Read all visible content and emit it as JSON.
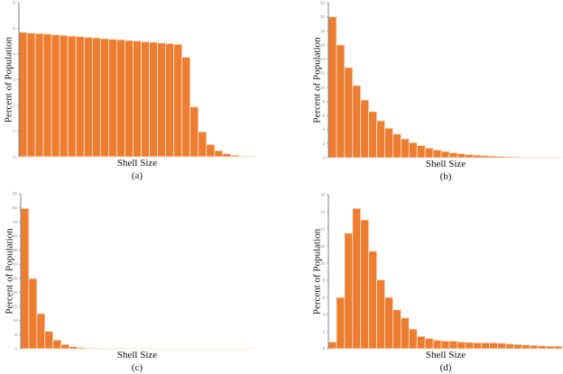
{
  "bar_color": "#ED7D31",
  "chart_data": [
    {
      "type": "bar",
      "panel": "(a)",
      "title": "",
      "xlabel": "Shell Size",
      "ylabel": "Percent of Population",
      "ylim": [
        0,
        6
      ],
      "yticks": [
        0,
        1,
        2,
        3,
        4,
        5,
        6
      ],
      "grid": false,
      "values": [
        4.85,
        4.82,
        4.8,
        4.78,
        4.75,
        4.73,
        4.7,
        4.68,
        4.65,
        4.63,
        4.6,
        4.58,
        4.56,
        4.53,
        4.51,
        4.48,
        4.46,
        4.43,
        4.41,
        4.38,
        3.88,
        1.94,
        0.97,
        0.48,
        0.24,
        0.12,
        0.06,
        0.03,
        0.015
      ]
    },
    {
      "type": "bar",
      "panel": "(b)",
      "title": "",
      "xlabel": "Shell Size",
      "ylabel": "Percent of Population",
      "ylim": [
        0,
        22
      ],
      "yticks": [
        0,
        2,
        4,
        6,
        8,
        10,
        12,
        14,
        16,
        18,
        20,
        22
      ],
      "grid": false,
      "values": [
        20,
        16,
        12.8,
        10.24,
        8.19,
        6.55,
        5.24,
        4.19,
        3.36,
        2.68,
        2.15,
        1.72,
        1.37,
        1.1,
        0.88,
        0.7,
        0.56,
        0.45,
        0.36,
        0.29,
        0.23,
        0.18,
        0.15,
        0.12,
        0.09,
        0.08,
        0.06,
        0.05,
        0.04
      ]
    },
    {
      "type": "bar",
      "panel": "(c)",
      "title": "",
      "xlabel": "Shell Size",
      "ylabel": "Percent of Population",
      "ylim": [
        0,
        55
      ],
      "yticks": [
        0,
        5,
        10,
        15,
        20,
        25,
        30,
        35,
        40,
        45,
        50,
        55
      ],
      "grid": false,
      "values": [
        49.8,
        24.9,
        12.45,
        6.2,
        3.1,
        1.55,
        0.78,
        0.39,
        0.2,
        0.1,
        0.05,
        0.03,
        0.02,
        0.01,
        0.01,
        0.01,
        0.01,
        0.01,
        0.01,
        0.01,
        0.01,
        0.01,
        0.01,
        0.01,
        0.01,
        0.01,
        0.01,
        0.01,
        0.01
      ]
    },
    {
      "type": "bar",
      "panel": "(d)",
      "title": "",
      "xlabel": "Shell Size",
      "ylabel": "Percent of Population",
      "ylim": [
        0,
        18
      ],
      "yticks": [
        0,
        2,
        4,
        6,
        8,
        10,
        12,
        14,
        16,
        18
      ],
      "grid": false,
      "values": [
        0.8,
        6.0,
        13.5,
        16.4,
        15.05,
        11.4,
        8.05,
        6.0,
        4.55,
        3.6,
        2.3,
        1.45,
        1.2,
        1.0,
        0.9,
        0.9,
        0.8,
        0.75,
        0.7,
        0.7,
        0.7,
        0.65,
        0.55,
        0.5,
        0.45,
        0.4,
        0.35,
        0.3,
        0.3
      ]
    }
  ]
}
